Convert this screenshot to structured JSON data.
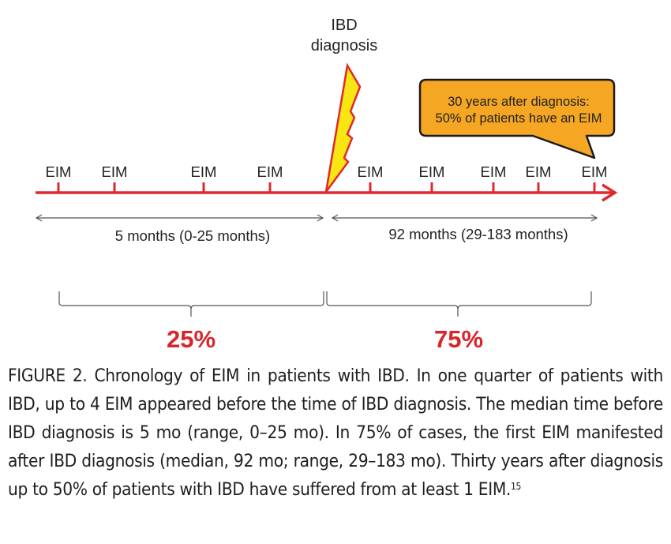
{
  "diagram": {
    "title_event": [
      "IBD",
      "diagnosis"
    ],
    "event_labels_before": [
      "EIM",
      "EIM",
      "EIM",
      "EIM"
    ],
    "event_labels_after": [
      "EIM",
      "EIM",
      "EIM",
      "EIM",
      "EIM"
    ],
    "callout": [
      "30 years after diagnosis:",
      "50% of patients have an EIM"
    ],
    "span_before_label": "5 months (0-25 months)",
    "span_after_label": "92 months (29-183 months)",
    "pct_before": "25%",
    "pct_after": "75%",
    "colors": {
      "timeline": "#e0282e",
      "bolt_fill": "#f7e612",
      "bolt_stroke": "#e0282e",
      "callout_fill": "#f5a623",
      "pct_text": "#d8262b",
      "arrow_gray": "#555555"
    }
  },
  "caption": {
    "text": "FIGURE 2. Chronology of EIM in patients with IBD. In one quarter of patients with IBD, up to 4 EIM appeared before the time of IBD diagnosis. The median time before IBD diagnosis is 5 mo (range, 0–25 mo). In 75% of cases, the first EIM manifested after IBD diagnosis (median, 92 mo; range, 29–183 mo). Thirty years after diagnosis up to 50% of patients with IBD have suffered from at least 1 EIM.",
    "reference": "15"
  }
}
